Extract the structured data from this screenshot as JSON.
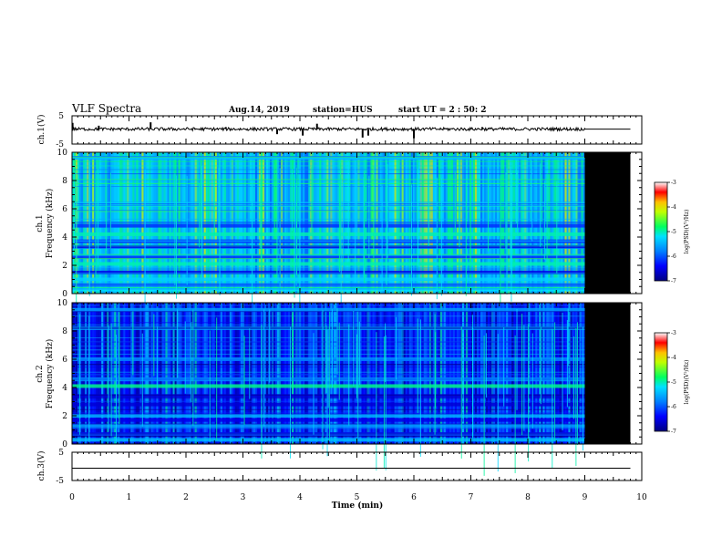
{
  "header": {
    "title": "VLF Spectra",
    "date": "Aug.14, 2019",
    "station": "station=HUS",
    "start": "start  UT =   2 : 50: 2"
  },
  "chart_data": [
    {
      "type": "line",
      "name": "ch1-waveform",
      "ylabel": "ch.1(V)",
      "ylim": [
        -5,
        5
      ],
      "yticks": [
        "5",
        "-5"
      ],
      "data_until_min": 9.0,
      "level": 0.3,
      "bursts": [
        {
          "t": 0.01,
          "v": 2.5
        },
        {
          "t": 0.47,
          "v": 1.5
        },
        {
          "t": 1.38,
          "v": 2.7
        },
        {
          "t": 2.7,
          "v": 1.0
        },
        {
          "t": 3.6,
          "v": -1.5
        },
        {
          "t": 4.05,
          "v": -2.0
        },
        {
          "t": 4.3,
          "v": 2.2
        },
        {
          "t": 5.1,
          "v": -2.7
        },
        {
          "t": 5.2,
          "v": -2.0
        },
        {
          "t": 6.0,
          "v": -3.0
        },
        {
          "t": 7.2,
          "v": 1.0
        }
      ]
    },
    {
      "type": "heatmap",
      "name": "ch1-spectrogram",
      "ylabel_line1": "ch.1",
      "ylabel_line2": "Frequency (kHz)",
      "ylim": [
        0,
        10
      ],
      "yticks": [
        "0",
        "2",
        "4",
        "6",
        "8",
        "10"
      ],
      "data_until_min": 9.0,
      "no_data_until_min": 9.8,
      "base_level": -5.4,
      "bands": [
        {
          "f": 0.3,
          "v": -5.2
        },
        {
          "f": 0.6,
          "v": -6.0
        },
        {
          "f": 1.0,
          "v": -5.3
        },
        {
          "f": 1.5,
          "v": -6.5
        },
        {
          "f": 2.1,
          "v": -5.0
        },
        {
          "f": 2.6,
          "v": -6.2
        },
        {
          "f": 3.3,
          "v": -6.5
        },
        {
          "f": 3.7,
          "v": -6.3
        },
        {
          "f": 4.2,
          "v": -5.0
        },
        {
          "f": 4.8,
          "v": -6.2
        },
        {
          "f": 9.6,
          "v": -5.5
        }
      ]
    },
    {
      "type": "heatmap",
      "name": "ch2-spectrogram",
      "ylabel_line1": "ch.2",
      "ylabel_line2": "Frequency (kHz)",
      "ylim": [
        0,
        10
      ],
      "yticks": [
        "0",
        "2",
        "4",
        "6",
        "8",
        "10"
      ],
      "data_until_min": 9.0,
      "no_data_until_min": 9.8,
      "base_level": -6.3,
      "bands": [
        {
          "f": 0.3,
          "v": -5.4
        },
        {
          "f": 0.7,
          "v": -6.5
        },
        {
          "f": 1.3,
          "v": -5.6
        },
        {
          "f": 1.7,
          "v": -6.5
        },
        {
          "f": 2.0,
          "v": -5.5
        },
        {
          "f": 2.8,
          "v": -6.6
        },
        {
          "f": 3.4,
          "v": -6.6
        },
        {
          "f": 4.1,
          "v": -4.9
        },
        {
          "f": 4.6,
          "v": -5.8
        },
        {
          "f": 6.0,
          "v": -5.7
        },
        {
          "f": 8.2,
          "v": -5.6
        },
        {
          "f": 9.5,
          "v": -5.6
        }
      ]
    },
    {
      "type": "line",
      "name": "ch3-waveform",
      "ylabel": "ch.3(V)",
      "ylim": [
        -5,
        5
      ],
      "yticks": [
        "5",
        "-5"
      ],
      "level": 0
    }
  ],
  "xaxis": {
    "label": "Time  (min)",
    "ticks": [
      "0",
      "1",
      "2",
      "3",
      "4",
      "5",
      "6",
      "7",
      "8",
      "9",
      "10"
    ],
    "xlim": [
      0,
      10
    ]
  },
  "colorbar": {
    "title": "log(PSD)(V²/Hz)",
    "ticks": [
      "-3",
      "-4",
      "-5",
      "-6",
      "-7"
    ],
    "range": [
      -7,
      -3
    ]
  }
}
